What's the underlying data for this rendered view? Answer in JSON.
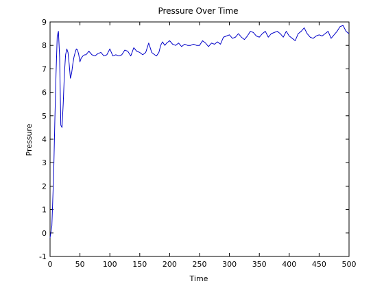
{
  "chart_data": {
    "type": "line",
    "title": "Pressure Over Time",
    "xlabel": "Time",
    "ylabel": "Pressure",
    "xlim": [
      0,
      500
    ],
    "ylim": [
      -1,
      9
    ],
    "xticks": [
      0,
      50,
      100,
      150,
      200,
      250,
      300,
      350,
      400,
      450,
      500
    ],
    "yticks": [
      -1,
      0,
      1,
      2,
      3,
      4,
      5,
      6,
      7,
      8,
      9
    ],
    "grid": false,
    "legend": "none",
    "series": [
      {
        "color": "#0000c8",
        "x": [
          0,
          3,
          6,
          8,
          10,
          12,
          14,
          16,
          18,
          20,
          22,
          24,
          26,
          28,
          30,
          32,
          34,
          36,
          38,
          40,
          42,
          44,
          46,
          48,
          50,
          52,
          55,
          58,
          60,
          65,
          70,
          75,
          80,
          85,
          90,
          95,
          100,
          105,
          110,
          115,
          120,
          125,
          130,
          135,
          140,
          145,
          150,
          155,
          160,
          165,
          170,
          175,
          178,
          182,
          185,
          188,
          192,
          195,
          200,
          205,
          210,
          215,
          220,
          225,
          230,
          235,
          240,
          245,
          250,
          255,
          260,
          265,
          270,
          275,
          280,
          285,
          290,
          295,
          300,
          305,
          310,
          315,
          320,
          325,
          330,
          335,
          340,
          345,
          350,
          355,
          360,
          365,
          370,
          375,
          380,
          385,
          390,
          395,
          400,
          405,
          410,
          415,
          420,
          425,
          430,
          435,
          440,
          445,
          450,
          455,
          460,
          465,
          470,
          475,
          480,
          485,
          490,
          495,
          500
        ],
        "y": [
          -0.2,
          0.3,
          2.5,
          4.8,
          6.8,
          8.4,
          8.6,
          7.5,
          4.6,
          4.5,
          5.5,
          6.8,
          7.6,
          7.85,
          7.7,
          7.2,
          6.6,
          6.8,
          7.2,
          7.5,
          7.7,
          7.85,
          7.8,
          7.6,
          7.3,
          7.45,
          7.55,
          7.6,
          7.6,
          7.75,
          7.6,
          7.55,
          7.65,
          7.7,
          7.55,
          7.6,
          7.85,
          7.55,
          7.6,
          7.55,
          7.6,
          7.8,
          7.75,
          7.55,
          7.9,
          7.75,
          7.7,
          7.6,
          7.7,
          8.1,
          7.7,
          7.6,
          7.55,
          7.7,
          8.0,
          8.15,
          8.0,
          8.1,
          8.2,
          8.05,
          8.0,
          8.1,
          7.95,
          8.05,
          8.0,
          8.0,
          8.05,
          8.0,
          8.0,
          8.2,
          8.1,
          7.95,
          8.1,
          8.05,
          8.15,
          8.05,
          8.35,
          8.4,
          8.45,
          8.3,
          8.35,
          8.5,
          8.35,
          8.25,
          8.4,
          8.6,
          8.55,
          8.4,
          8.35,
          8.5,
          8.6,
          8.35,
          8.5,
          8.55,
          8.6,
          8.5,
          8.35,
          8.6,
          8.4,
          8.3,
          8.2,
          8.5,
          8.6,
          8.75,
          8.5,
          8.35,
          8.3,
          8.4,
          8.45,
          8.4,
          8.5,
          8.6,
          8.3,
          8.45,
          8.6,
          8.8,
          8.85,
          8.6,
          8.5
        ]
      }
    ]
  }
}
